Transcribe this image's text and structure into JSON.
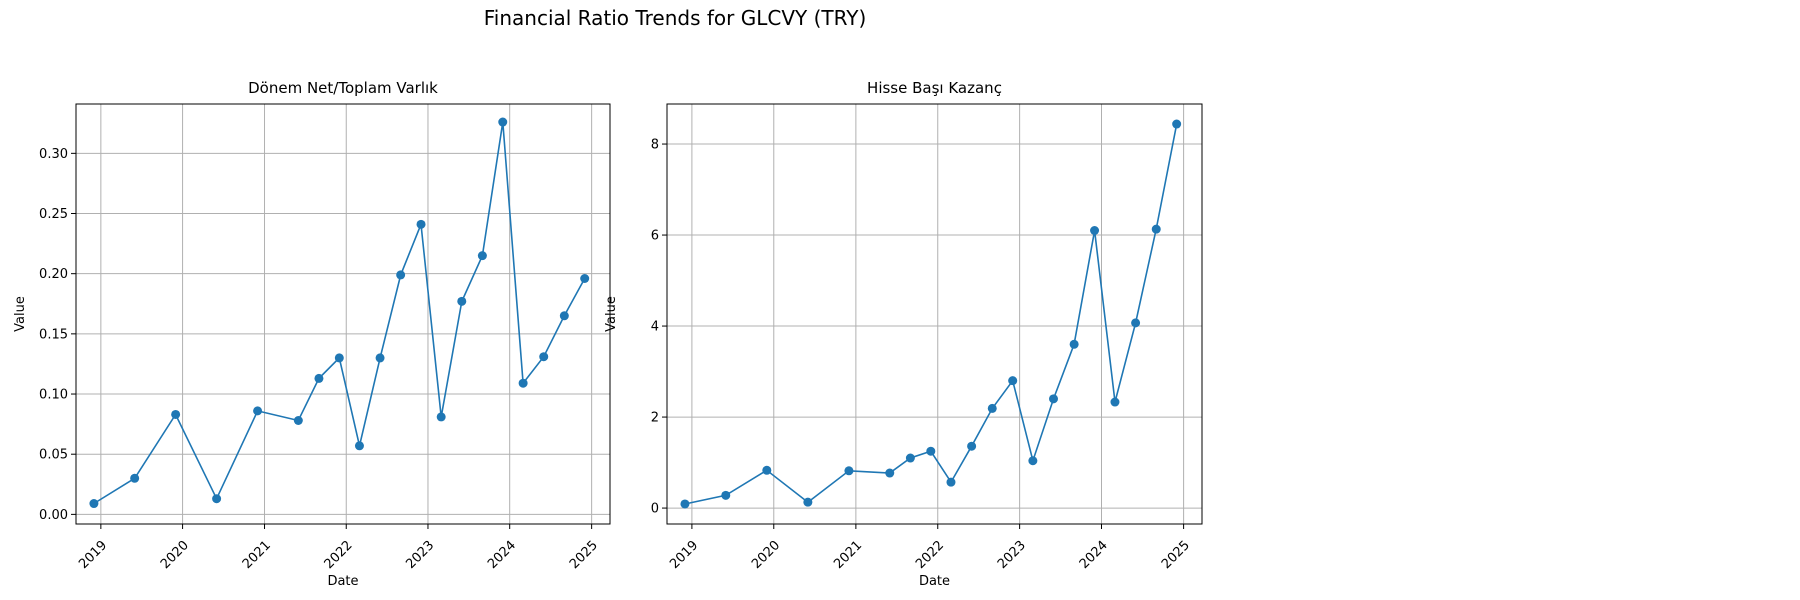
{
  "figure": {
    "title": "Financial Ratio Trends for GLCVY (TRY)"
  },
  "chart_data": [
    {
      "type": "line",
      "title": "Dönem Net/Toplam Varlık",
      "xlabel": "Date",
      "ylabel": "Value",
      "x_ticks": [
        "2019",
        "2020",
        "2021",
        "2022",
        "2023",
        "2024",
        "2025"
      ],
      "y_ticks": [
        "0.00",
        "0.05",
        "0.10",
        "0.15",
        "0.20",
        "0.25",
        "0.30"
      ],
      "ylim": [
        -0.008,
        0.341
      ],
      "xlim": [
        "2018-09-12",
        "2025-03-24"
      ],
      "grid": true,
      "color": "#1f77b4",
      "x": [
        "2018-12-01",
        "2019-06-01",
        "2019-12-01",
        "2020-06-01",
        "2020-12-01",
        "2021-06-01",
        "2021-09-01",
        "2021-12-01",
        "2022-03-01",
        "2022-06-01",
        "2022-09-01",
        "2022-12-01",
        "2023-03-01",
        "2023-06-01",
        "2023-09-01",
        "2023-12-01",
        "2024-03-01",
        "2024-06-01",
        "2024-09-01",
        "2024-12-01"
      ],
      "y": [
        0.009,
        0.03,
        0.083,
        0.013,
        0.086,
        0.078,
        0.113,
        0.13,
        0.057,
        0.13,
        0.199,
        0.241,
        0.081,
        0.177,
        0.215,
        0.326,
        0.109,
        0.131,
        0.165,
        0.196
      ]
    },
    {
      "type": "line",
      "title": "Hisse Başı Kazanç",
      "xlabel": "Date",
      "ylabel": "Value",
      "x_ticks": [
        "2019",
        "2020",
        "2021",
        "2022",
        "2023",
        "2024",
        "2025"
      ],
      "y_ticks": [
        "0",
        "2",
        "4",
        "6",
        "8"
      ],
      "ylim": [
        -0.35,
        8.88
      ],
      "xlim": [
        "2018-09-12",
        "2025-03-24"
      ],
      "grid": true,
      "color": "#1f77b4",
      "x": [
        "2018-12-01",
        "2019-06-01",
        "2019-12-01",
        "2020-06-01",
        "2020-12-01",
        "2021-06-01",
        "2021-09-01",
        "2021-12-01",
        "2022-03-01",
        "2022-06-01",
        "2022-09-01",
        "2022-12-01",
        "2023-03-01",
        "2023-06-01",
        "2023-09-01",
        "2023-12-01",
        "2024-03-01",
        "2024-06-01",
        "2024-09-01",
        "2024-12-01"
      ],
      "y": [
        0.09,
        0.28,
        0.83,
        0.13,
        0.82,
        0.77,
        1.1,
        1.25,
        0.57,
        1.36,
        2.19,
        2.8,
        1.04,
        2.4,
        3.6,
        6.1,
        2.33,
        4.07,
        6.13,
        8.44
      ]
    }
  ]
}
